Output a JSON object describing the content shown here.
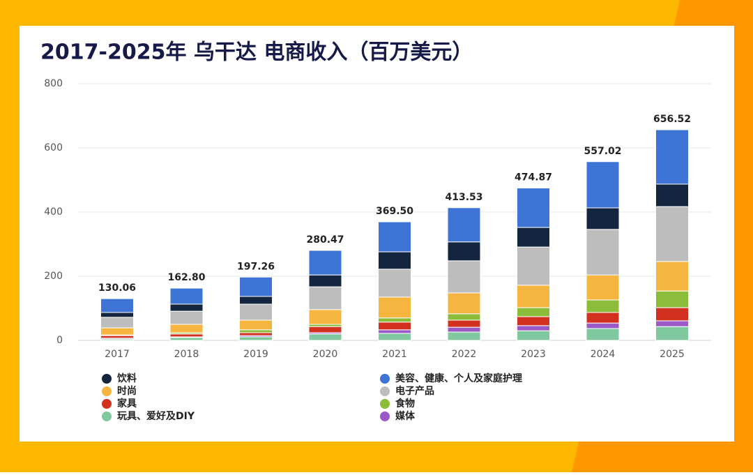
{
  "chart_data": {
    "type": "stacked_bar",
    "title": "2017-2025年 乌干达 电商收入（百万美元）",
    "categories": [
      "2017",
      "2018",
      "2019",
      "2020",
      "2021",
      "2022",
      "2023",
      "2024",
      "2025"
    ],
    "series": [
      {
        "name": "饮料",
        "color": "#13253f",
        "values": [
          15,
          22,
          24,
          37,
          54,
          59,
          61,
          67,
          70
        ]
      },
      {
        "name": "时尚",
        "color": "#f6b53f",
        "values": [
          22,
          26,
          30,
          46,
          65,
          65,
          70,
          78,
          92
        ]
      },
      {
        "name": "家具",
        "color": "#d2311f",
        "values": [
          8,
          9,
          9,
          19,
          24,
          22,
          28,
          33,
          41
        ]
      },
      {
        "name": "玩具、爱好及DIY",
        "color": "#80c99f",
        "values": [
          4,
          9,
          11,
          20,
          22,
          26,
          30,
          37,
          43
        ]
      },
      {
        "name": "美容、健康、个人及家庭护理",
        "color": "#3d74d6",
        "values": [
          43.06,
          49.8,
          60.26,
          76.47,
          93.5,
          106.53,
          122.87,
          144.02,
          169.52
        ]
      },
      {
        "name": "电子产品",
        "color": "#bdbdbd",
        "values": [
          33,
          41,
          50,
          71,
          87,
          100,
          119,
          142,
          171
        ]
      },
      {
        "name": "食物",
        "color": "#8cbd3a",
        "values": [
          2,
          4,
          9,
          7,
          13,
          20,
          28,
          39,
          52
        ]
      },
      {
        "name": "媒体",
        "color": "#9b59c8",
        "values": [
          3,
          2,
          4,
          4,
          11,
          15,
          16,
          17,
          18
        ]
      }
    ],
    "totals": [
      130.06,
      162.8,
      197.26,
      280.47,
      369.5,
      413.53,
      474.87,
      557.02,
      656.52
    ],
    "total_labels": [
      "130.06",
      "162.80",
      "197.26",
      "280.47",
      "369.50",
      "413.53",
      "474.87",
      "557.02",
      "656.52"
    ],
    "ylim": [
      0,
      800
    ],
    "yticks": [
      0,
      200,
      400,
      600,
      800
    ],
    "grid": true
  }
}
